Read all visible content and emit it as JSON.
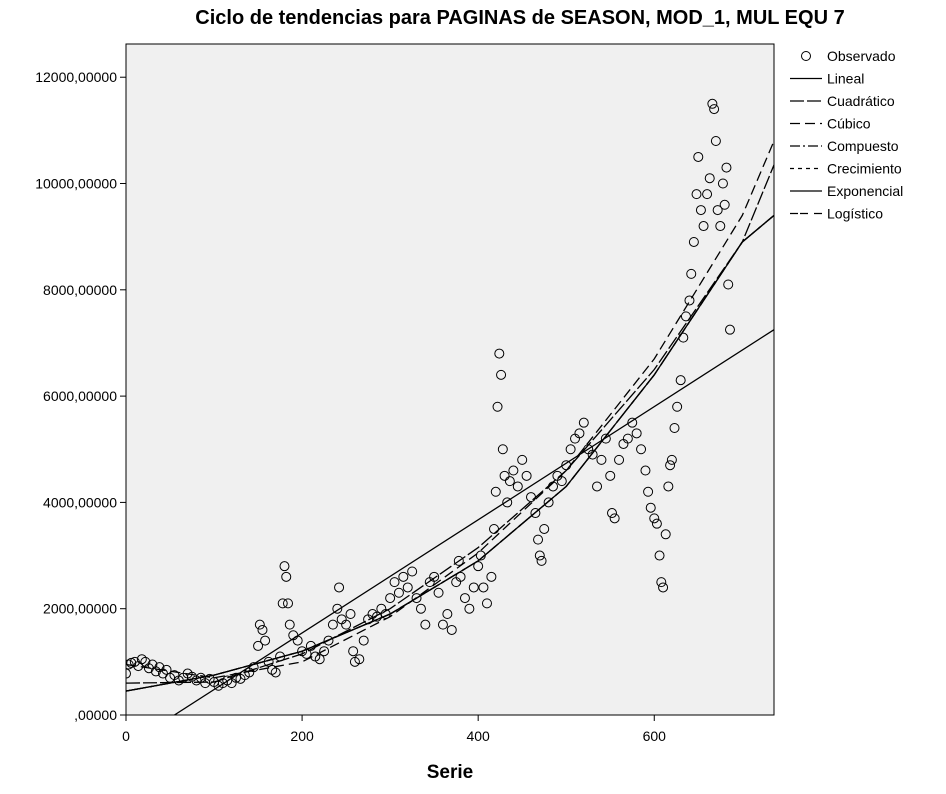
{
  "chart_data": {
    "type": "scatter",
    "title": "Ciclo de tendencias para PAGINAS de SEASON, MOD_1, MUL EQU 7",
    "x_label": "Serie",
    "xlim": [
      0,
      736
    ],
    "ylim": [
      0,
      12625
    ],
    "xticks": [
      0,
      200,
      400,
      600
    ],
    "yticks": [
      {
        "value": 0,
        "label": ",00000"
      },
      {
        "value": 2000,
        "label": "2000,00000"
      },
      {
        "value": 4000,
        "label": "4000,00000"
      },
      {
        "value": 6000,
        "label": "6000,00000"
      },
      {
        "value": 8000,
        "label": "8000,00000"
      },
      {
        "value": 10000,
        "label": "10000,00000"
      },
      {
        "value": 12000,
        "label": "12000,00000"
      }
    ],
    "plot_background": "#f0f0f0",
    "legend_position": "outside-right",
    "series": [
      {
        "name": "Observado",
        "color": "#000000",
        "mark": "circle",
        "x": [
          0,
          3,
          6,
          10,
          14,
          18,
          22,
          26,
          30,
          34,
          38,
          42,
          46,
          50,
          55,
          60,
          65,
          70,
          75,
          80,
          85,
          90,
          95,
          100,
          105,
          110,
          115,
          120,
          125,
          130,
          135,
          140,
          145,
          150,
          152,
          155,
          158,
          162,
          166,
          170,
          175,
          178,
          180,
          182,
          184,
          186,
          190,
          195,
          200,
          205,
          210,
          215,
          220,
          225,
          230,
          235,
          240,
          242,
          245,
          250,
          255,
          258,
          260,
          265,
          270,
          275,
          280,
          285,
          290,
          295,
          300,
          305,
          310,
          315,
          320,
          325,
          330,
          335,
          340,
          345,
          350,
          355,
          360,
          365,
          370,
          375,
          378,
          380,
          385,
          390,
          395,
          400,
          403,
          406,
          410,
          415,
          418,
          420,
          422,
          424,
          426,
          428,
          430,
          433,
          436,
          440,
          445,
          450,
          455,
          460,
          465,
          468,
          470,
          472,
          475,
          480,
          485,
          490,
          495,
          500,
          505,
          510,
          515,
          520,
          525,
          530,
          535,
          540,
          545,
          550,
          552,
          555,
          560,
          565,
          570,
          575,
          580,
          585,
          590,
          593,
          596,
          600,
          603,
          606,
          608,
          610,
          613,
          616,
          618,
          620,
          623,
          626,
          630,
          633,
          636,
          640,
          642,
          645,
          648,
          650,
          653,
          656,
          660,
          663,
          666,
          668,
          670,
          672,
          675,
          678,
          680,
          682,
          684,
          686
        ],
        "values": [
          780,
          950,
          980,
          1000,
          920,
          1050,
          1000,
          880,
          950,
          820,
          900,
          780,
          850,
          700,
          750,
          650,
          700,
          780,
          720,
          650,
          700,
          600,
          680,
          620,
          550,
          600,
          650,
          600,
          700,
          680,
          750,
          800,
          900,
          1300,
          1700,
          1600,
          1400,
          1000,
          850,
          800,
          1100,
          2100,
          2800,
          2600,
          2100,
          1700,
          1500,
          1400,
          1200,
          1150,
          1300,
          1100,
          1050,
          1200,
          1400,
          1700,
          2000,
          2400,
          1800,
          1700,
          1900,
          1200,
          1000,
          1050,
          1400,
          1800,
          1900,
          1850,
          2000,
          1900,
          2200,
          2500,
          2300,
          2600,
          2400,
          2700,
          2200,
          2000,
          1700,
          2500,
          2600,
          2300,
          1700,
          1900,
          1600,
          2500,
          2900,
          2600,
          2200,
          2000,
          2400,
          2800,
          3000,
          2400,
          2100,
          2600,
          3500,
          4200,
          5800,
          6800,
          6400,
          5000,
          4500,
          4000,
          4400,
          4600,
          4300,
          4800,
          4500,
          4100,
          3800,
          3300,
          3000,
          2900,
          3500,
          4000,
          4300,
          4500,
          4400,
          4700,
          5000,
          5200,
          5300,
          5500,
          5000,
          4900,
          4300,
          4800,
          5200,
          4500,
          3800,
          3700,
          4800,
          5100,
          5200,
          5500,
          5300,
          5000,
          4600,
          4200,
          3900,
          3700,
          3600,
          3000,
          2500,
          2400,
          3400,
          4300,
          4700,
          4800,
          5400,
          5800,
          6300,
          7100,
          7500,
          7800,
          8300,
          8900,
          9800,
          10500,
          9500,
          9200,
          9800,
          10100,
          11500,
          11400,
          10800,
          9500,
          9200,
          10000,
          9600,
          10300,
          8100,
          7250
        ]
      },
      {
        "name": "Lineal",
        "color": "#000000",
        "dash": "none",
        "x": [
          55,
          736
        ],
        "values": [
          0,
          7250
        ]
      },
      {
        "name": "Cuadrático",
        "color": "#000000",
        "dash": "14 3",
        "x": [
          0,
          100,
          200,
          300,
          400,
          500,
          600,
          700,
          736
        ],
        "values": [
          600,
          620,
          1150,
          2000,
          3150,
          4600,
          6500,
          8900,
          10350
        ]
      },
      {
        "name": "Cúbico",
        "color": "#000000",
        "dash": "10 5",
        "x": [
          0,
          100,
          200,
          300,
          400,
          500,
          600,
          700,
          736
        ],
        "values": [
          950,
          700,
          1000,
          1850,
          3050,
          4600,
          6700,
          9400,
          10800
        ]
      },
      {
        "name": "Compuesto",
        "color": "#000000",
        "dash": "10 3 2 3",
        "x": [
          0,
          100,
          200,
          300,
          400,
          500,
          600,
          700,
          736
        ],
        "values": [
          450,
          750,
          1200,
          1900,
          2900,
          4300,
          6400,
          8900,
          9400
        ]
      },
      {
        "name": "Crecimiento",
        "color": "#000000",
        "dash": "4 4",
        "x": [
          0,
          100,
          200,
          300,
          400,
          500,
          600,
          700,
          736
        ],
        "values": [
          450,
          750,
          1200,
          1900,
          2900,
          4300,
          6400,
          8900,
          9400
        ]
      },
      {
        "name": "Exponencial",
        "color": "#000000",
        "dash": "none",
        "x": [
          0,
          100,
          200,
          300,
          400,
          500,
          600,
          700,
          736
        ],
        "values": [
          450,
          750,
          1200,
          1900,
          2900,
          4300,
          6400,
          8900,
          9400
        ]
      },
      {
        "name": "Logístico",
        "color": "#000000",
        "dash": "8 2 8 6",
        "x": [
          0,
          100,
          200,
          300,
          400,
          500,
          600,
          700,
          736
        ],
        "values": [
          450,
          750,
          1200,
          1900,
          2900,
          4300,
          6400,
          8900,
          9400
        ]
      }
    ]
  }
}
